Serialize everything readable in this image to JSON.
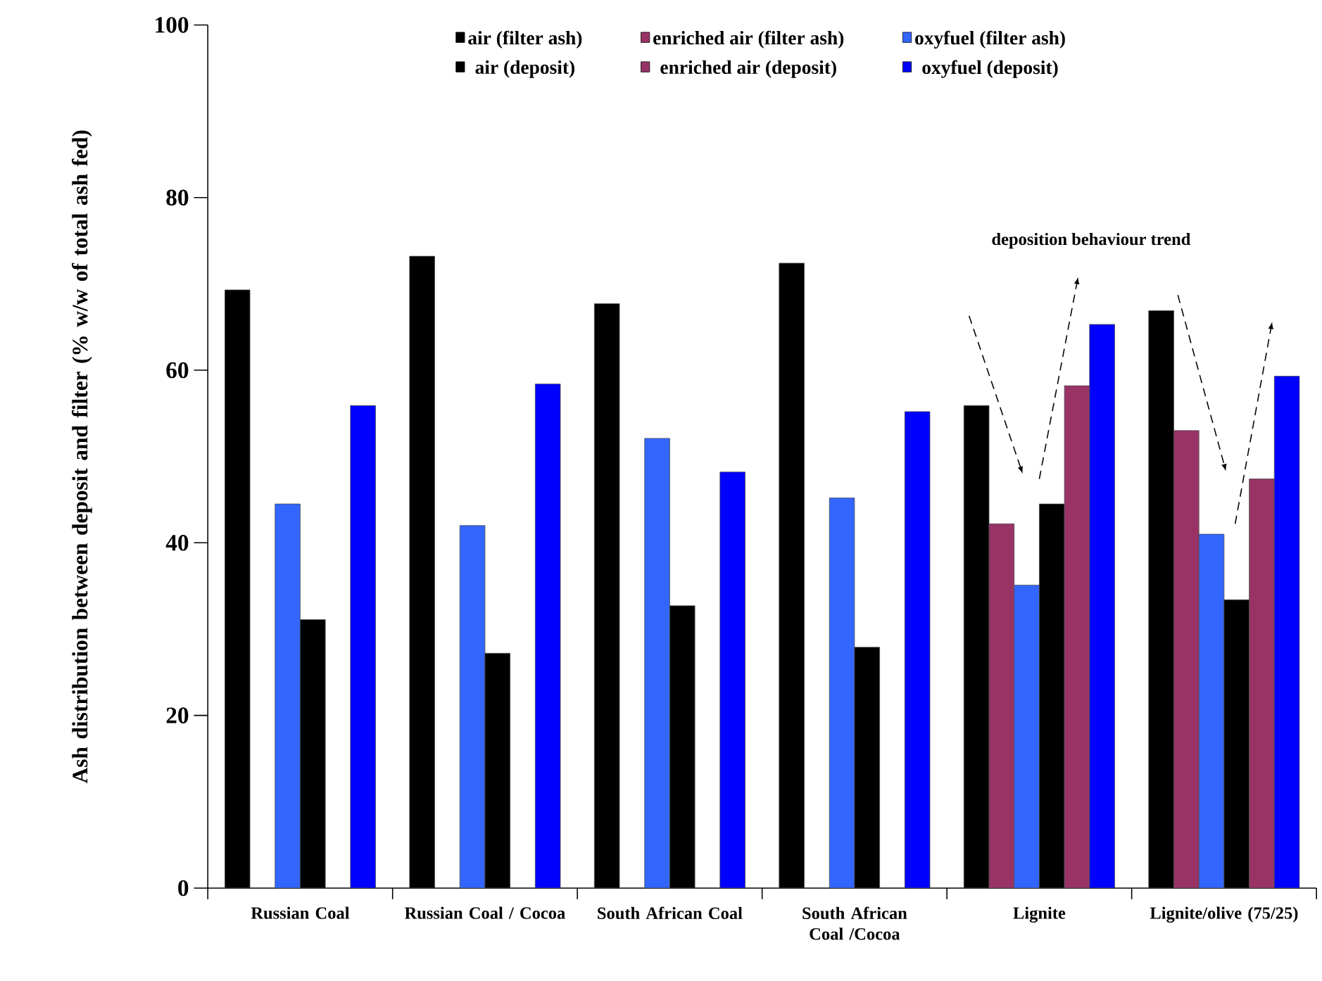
{
  "chart_data": {
    "type": "bar",
    "ylabel": "Ash distribution between deposit and filter (% w/w of total ash fed)",
    "categories": [
      "Russian Coal",
      "Russian Coal / Cocoa",
      "South African Coal",
      "South African Coal /Cocoa",
      "Lignite",
      "Lignite/olive (75/25)"
    ],
    "series": [
      {
        "name": "air (filter ash)",
        "color": "#000000",
        "values": [
          69.3,
          73.2,
          67.7,
          72.4,
          55.9,
          66.9
        ]
      },
      {
        "name": "enriched air (filter ash)",
        "color": "#993366",
        "values": [
          null,
          null,
          null,
          null,
          42.2,
          53.0
        ]
      },
      {
        "name": "oxyfuel (filter ash)",
        "color": "#3366ff",
        "values": [
          44.5,
          42.0,
          52.1,
          45.2,
          35.1,
          41.0
        ]
      },
      {
        "name": "air (deposit)",
        "color": "#000000",
        "values": [
          31.1,
          27.2,
          32.7,
          27.9,
          44.5,
          33.4
        ]
      },
      {
        "name": "enriched air (deposit)",
        "color": "#993366",
        "values": [
          null,
          null,
          null,
          null,
          58.2,
          47.4
        ]
      },
      {
        "name": "oxyfuel (deposit)",
        "color": "#0000ff",
        "values": [
          55.9,
          58.4,
          48.2,
          55.2,
          65.3,
          59.3
        ]
      }
    ],
    "ylim": [
      0,
      100
    ],
    "yticks": [
      0,
      20,
      40,
      60,
      80,
      100
    ],
    "grid": false,
    "legend": "top",
    "annotations": [
      "deposition behaviour trend"
    ]
  }
}
